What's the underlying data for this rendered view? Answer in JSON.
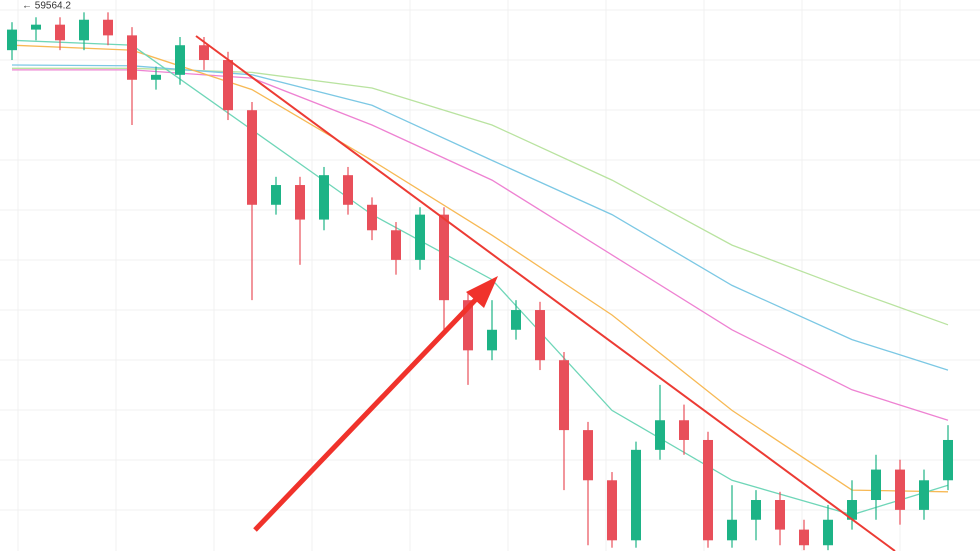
{
  "chart_data": {
    "type": "candlestick",
    "annotation": "← 59564.2",
    "ylim": [
      53000,
      59700
    ],
    "up_color": "#1db386",
    "down_color": "#e84f5a",
    "candles": {
      "open": [
        59090,
        59340,
        59400,
        59210,
        59460,
        59270,
        58730,
        58790,
        59150,
        58970,
        58360,
        57210,
        57450,
        57030,
        57570,
        57210,
        56900,
        56540,
        57090,
        56050,
        55440,
        55690,
        55930,
        55320,
        54470,
        53860,
        53130,
        54230,
        54590,
        54350,
        53130,
        53380,
        53620,
        53260,
        53070,
        53380,
        53620,
        53990,
        53500,
        53860
      ],
      "high": [
        59430,
        59490,
        59490,
        59550,
        59550,
        59370,
        58890,
        59250,
        59250,
        59070,
        58460,
        57550,
        57550,
        57670,
        57670,
        57300,
        57000,
        57180,
        57180,
        56150,
        56050,
        56050,
        56030,
        55420,
        54570,
        53960,
        54330,
        55020,
        54780,
        54450,
        53800,
        53740,
        53720,
        53380,
        53560,
        53860,
        54170,
        54110,
        53990,
        54530
      ],
      "low": [
        58970,
        59210,
        59090,
        59090,
        59150,
        58180,
        58610,
        58670,
        58850,
        58240,
        56050,
        57090,
        56480,
        56900,
        57090,
        56780,
        56360,
        56420,
        55690,
        55020,
        55320,
        55570,
        55200,
        53740,
        53070,
        53040,
        53040,
        54110,
        54170,
        53040,
        53040,
        53130,
        53070,
        53010,
        53010,
        53260,
        53380,
        53320,
        53380,
        53740
      ],
      "close": [
        59340,
        59400,
        59210,
        59460,
        59270,
        58730,
        58790,
        59150,
        58970,
        58360,
        57210,
        57450,
        57030,
        57570,
        57210,
        56900,
        56540,
        57090,
        56050,
        55440,
        55690,
        55930,
        55320,
        54470,
        53860,
        53130,
        54230,
        54590,
        54350,
        53130,
        53380,
        53620,
        53260,
        53070,
        53380,
        53620,
        53990,
        53500,
        53860,
        54350
      ]
    },
    "series": [
      {
        "color": "#b9e3a0",
        "x": [
          0,
          5,
          10,
          15,
          20,
          25,
          30,
          35,
          39
        ],
        "values": [
          58870,
          58870,
          58820,
          58630,
          58180,
          57510,
          56720,
          56170,
          55750
        ]
      },
      {
        "color": "#7cc8e4",
        "x": [
          0,
          5,
          10,
          15,
          20,
          25,
          30,
          35,
          39
        ],
        "values": [
          58910,
          58900,
          58790,
          58420,
          57750,
          57090,
          56230,
          55570,
          55200
        ]
      },
      {
        "color": "#ee82d2",
        "x": [
          0,
          5,
          10,
          15,
          20,
          25,
          30,
          35,
          39
        ],
        "values": [
          58850,
          58850,
          58750,
          58180,
          57510,
          56600,
          55690,
          54960,
          54590
        ]
      },
      {
        "color": "#f7b955",
        "x": [
          0,
          5,
          10,
          15,
          20,
          25,
          30,
          35,
          39
        ],
        "values": [
          59150,
          59090,
          58610,
          57750,
          56840,
          55870,
          54710,
          53740,
          53720
        ]
      },
      {
        "color": "#6fd6b8",
        "x": [
          0,
          5,
          10,
          15,
          20,
          25,
          30,
          35,
          39
        ],
        "values": [
          59210,
          59150,
          58120,
          57090,
          56300,
          54710,
          53860,
          53440,
          53800
        ]
      }
    ]
  }
}
